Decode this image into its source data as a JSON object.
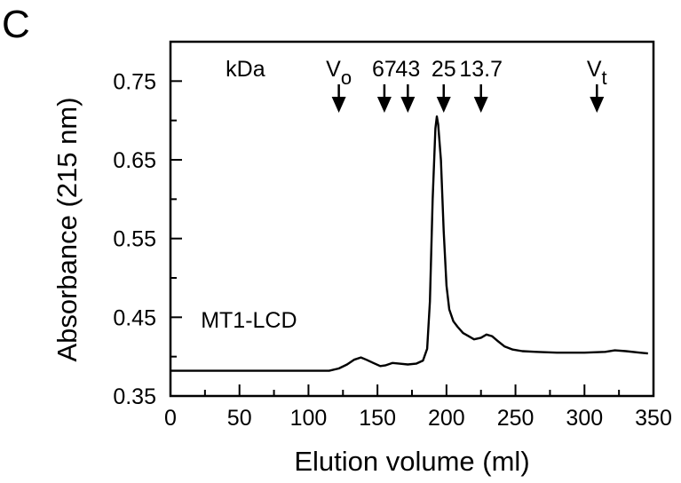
{
  "panel_label": "C",
  "chart_data": {
    "type": "line",
    "title": "",
    "xlabel": "Elution volume (ml)",
    "ylabel": "Absorbance (215 nm)",
    "xlim": [
      0,
      350
    ],
    "ylim": [
      0.35,
      0.8
    ],
    "x_ticks": [
      0,
      50,
      100,
      150,
      200,
      250,
      300,
      350
    ],
    "x_tick_labels": [
      "0",
      "50",
      "100",
      "150",
      "200",
      "250",
      "300",
      "350"
    ],
    "y_ticks": [
      0.35,
      0.45,
      0.55,
      0.65,
      0.75
    ],
    "y_tick_labels": [
      "0.35",
      "0.45",
      "0.55",
      "0.65",
      "0.75"
    ],
    "grid": false,
    "series": [
      {
        "name": "MT1-LCD",
        "x": [
          0,
          30,
          60,
          90,
          115,
          122,
          128,
          133,
          138,
          142,
          147,
          152,
          156,
          161,
          166,
          172,
          178,
          183,
          186,
          188,
          190,
          192,
          193,
          194,
          196,
          198,
          200,
          202,
          205,
          208,
          212,
          216,
          220,
          225,
          229,
          233,
          237,
          242,
          248,
          255,
          265,
          280,
          300,
          315,
          322,
          330,
          340,
          346
        ],
        "y": [
          0.382,
          0.382,
          0.382,
          0.382,
          0.382,
          0.385,
          0.39,
          0.396,
          0.399,
          0.396,
          0.392,
          0.388,
          0.389,
          0.392,
          0.391,
          0.39,
          0.391,
          0.395,
          0.41,
          0.47,
          0.6,
          0.69,
          0.705,
          0.695,
          0.65,
          0.56,
          0.49,
          0.46,
          0.445,
          0.438,
          0.43,
          0.426,
          0.422,
          0.424,
          0.428,
          0.426,
          0.42,
          0.413,
          0.409,
          0.407,
          0.406,
          0.405,
          0.405,
          0.406,
          0.408,
          0.407,
          0.405,
          0.404
        ]
      }
    ],
    "annotations": [
      {
        "text": "MT1-LCD",
        "x": 22,
        "y": 0.437
      }
    ],
    "marker_header": "kDa",
    "markers": [
      {
        "label": "V",
        "sub": "o",
        "x": 122
      },
      {
        "label": "67",
        "sub": "",
        "x": 155
      },
      {
        "label": "43",
        "sub": "",
        "x": 172
      },
      {
        "label": "25",
        "sub": "",
        "x": 198
      },
      {
        "label": "13.7",
        "sub": "",
        "x": 225
      },
      {
        "label": "V",
        "sub": "t",
        "x": 309
      }
    ]
  }
}
